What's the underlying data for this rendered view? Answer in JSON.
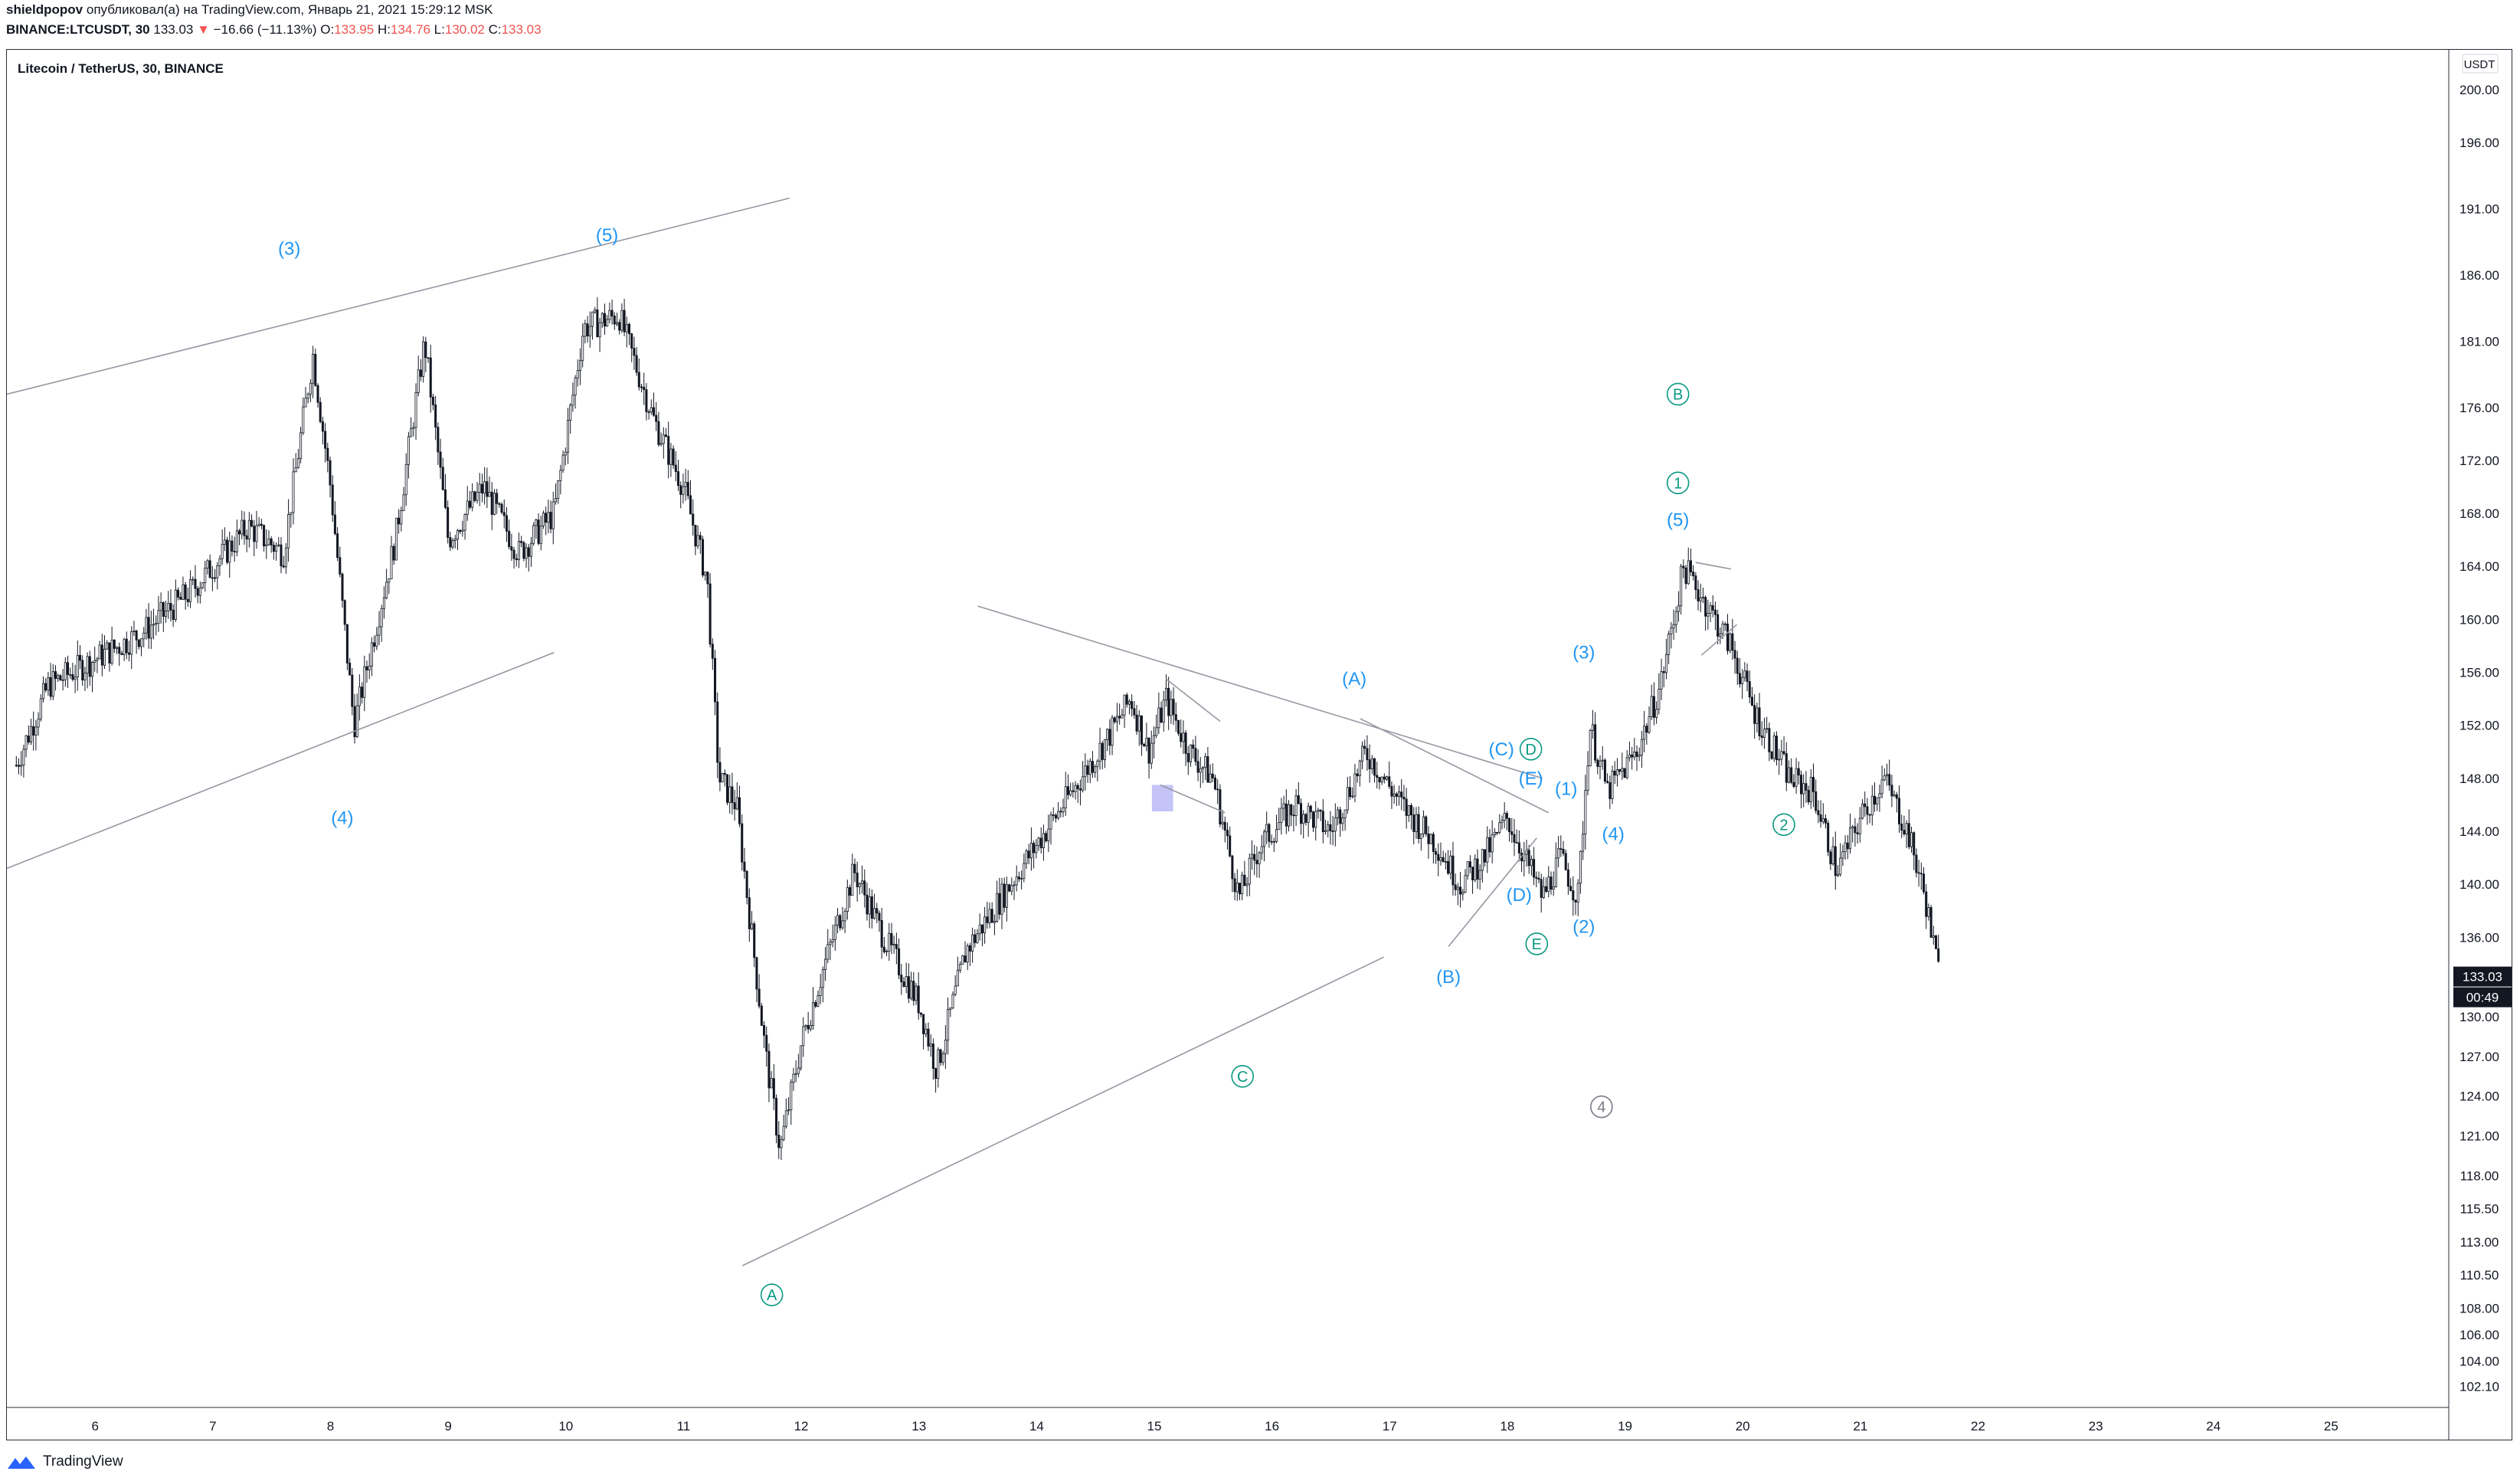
{
  "header": {
    "author": "shieldpopov",
    "published_text": "опубликовал(а) на TradingView.com, Январь 21, 2021 15:29:12 MSK",
    "symbol": "BINANCE:LTCUSDT, 30",
    "last": "133.03",
    "change": "−16.66 (−11.13%)",
    "open_label": "O:",
    "open_value": "133.95",
    "high_label": "H:",
    "high_value": "134.76",
    "low_label": "L:",
    "low_value": "130.02",
    "close_label": "C:",
    "close_value": "133.03"
  },
  "footer": {
    "brand": "TradingView",
    "logo_icon": "tradingview-logo-icon"
  },
  "colors": {
    "text": "#131722",
    "red": "#ef5350",
    "wave_blue": "#2196f3",
    "wave_green": "#089981",
    "wave_gray": "#787b86",
    "line": "#9598a1",
    "highlight": "#9c9cf5",
    "candle": "#131722"
  },
  "chart_data": {
    "type": "candlestick",
    "title": "Litecoin / TetherUS, 30, BINANCE",
    "currency": "USDT",
    "price_tag": "133.03",
    "countdown": "00:49",
    "y_ticks": [
      "200.00",
      "196.00",
      "191.00",
      "186.00",
      "181.00",
      "176.00",
      "172.00",
      "168.00",
      "164.00",
      "160.00",
      "156.00",
      "152.00",
      "148.00",
      "144.00",
      "140.00",
      "136.00",
      "130.00",
      "127.00",
      "124.00",
      "121.00",
      "118.00",
      "115.50",
      "113.00",
      "110.50",
      "108.00",
      "106.00",
      "104.00",
      "102.10"
    ],
    "x_ticks": [
      "6",
      "7",
      "8",
      "9",
      "10",
      "11",
      "12",
      "13",
      "14",
      "15",
      "16",
      "17",
      "18",
      "19",
      "20",
      "21",
      "22",
      "23",
      "24",
      "25"
    ],
    "ylim": [
      100.5,
      203
    ],
    "xlim": [
      5.25,
      26.0
    ],
    "price_path": [
      [
        5.33,
        149
      ],
      [
        5.6,
        155
      ],
      [
        6.0,
        157
      ],
      [
        6.4,
        159
      ],
      [
        6.8,
        162
      ],
      [
        7.0,
        164
      ],
      [
        7.3,
        167
      ],
      [
        7.6,
        165
      ],
      [
        7.85,
        180
      ],
      [
        8.0,
        170
      ],
      [
        8.2,
        152
      ],
      [
        8.35,
        158
      ],
      [
        8.55,
        166
      ],
      [
        8.8,
        181
      ],
      [
        9.0,
        166
      ],
      [
        9.3,
        170
      ],
      [
        9.6,
        165
      ],
      [
        9.9,
        168
      ],
      [
        10.15,
        182
      ],
      [
        10.45,
        183
      ],
      [
        10.75,
        175
      ],
      [
        11.0,
        170
      ],
      [
        11.2,
        163
      ],
      [
        11.3,
        148
      ],
      [
        11.45,
        146
      ],
      [
        11.7,
        127
      ],
      [
        11.82,
        120
      ],
      [
        12.0,
        128
      ],
      [
        12.2,
        134
      ],
      [
        12.45,
        141
      ],
      [
        12.7,
        136
      ],
      [
        13.0,
        131
      ],
      [
        13.15,
        126
      ],
      [
        13.4,
        135
      ],
      [
        13.7,
        139
      ],
      [
        14.0,
        143
      ],
      [
        14.3,
        147
      ],
      [
        14.6,
        151
      ],
      [
        14.8,
        154
      ],
      [
        14.95,
        150
      ],
      [
        15.1,
        154
      ],
      [
        15.3,
        150
      ],
      [
        15.5,
        148
      ],
      [
        15.72,
        139
      ],
      [
        15.9,
        143
      ],
      [
        16.2,
        146
      ],
      [
        16.5,
        144
      ],
      [
        16.8,
        150
      ],
      [
        17.1,
        146
      ],
      [
        17.4,
        143
      ],
      [
        17.6,
        140
      ],
      [
        17.8,
        142
      ],
      [
        18.0,
        145
      ],
      [
        18.2,
        141
      ],
      [
        18.3,
        139
      ],
      [
        18.45,
        142
      ],
      [
        18.6,
        139
      ],
      [
        18.7,
        152
      ],
      [
        18.85,
        147
      ],
      [
        19.1,
        150
      ],
      [
        19.3,
        155
      ],
      [
        19.5,
        164
      ],
      [
        19.7,
        161
      ],
      [
        19.9,
        158
      ],
      [
        20.1,
        153
      ],
      [
        20.4,
        148
      ],
      [
        20.6,
        147
      ],
      [
        20.8,
        141
      ],
      [
        21.0,
        145
      ],
      [
        21.2,
        148
      ],
      [
        21.4,
        144
      ],
      [
        21.55,
        139
      ],
      [
        21.65,
        134
      ],
      [
        21.68,
        133
      ]
    ],
    "trendlines": [
      {
        "x1": 5.25,
        "y1": 177,
        "x2": 11.9,
        "y2": 191.8
      },
      {
        "x1": 5.25,
        "y1": 141.2,
        "x2": 9.9,
        "y2": 157.5
      },
      {
        "x1": 13.5,
        "y1": 161,
        "x2": 18.3,
        "y2": 148
      },
      {
        "x1": 11.5,
        "y1": 111.2,
        "x2": 16.95,
        "y2": 134.5
      },
      {
        "x1": 15.1,
        "y1": 155.5,
        "x2": 15.56,
        "y2": 152.3
      },
      {
        "x1": 15.05,
        "y1": 147.5,
        "x2": 15.6,
        "y2": 145.4
      },
      {
        "x1": 16.75,
        "y1": 152.5,
        "x2": 18.35,
        "y2": 145.4
      },
      {
        "x1": 17.5,
        "y1": 135.3,
        "x2": 18.25,
        "y2": 143.5
      },
      {
        "x1": 19.6,
        "y1": 164.3,
        "x2": 19.9,
        "y2": 163.8
      },
      {
        "x1": 19.65,
        "y1": 157.3,
        "x2": 19.95,
        "y2": 159.6
      }
    ],
    "highlight_box": {
      "x1": 14.98,
      "x2": 15.16,
      "y1": 145.5,
      "y2": 147.5
    },
    "wave_labels": [
      {
        "text": "(3)",
        "x": 7.65,
        "y": 188,
        "color": "wave_blue",
        "circle": false
      },
      {
        "text": "(5)",
        "x": 10.35,
        "y": 189,
        "color": "wave_blue",
        "circle": false
      },
      {
        "text": "(4)",
        "x": 8.1,
        "y": 145,
        "color": "wave_blue",
        "circle": false
      },
      {
        "text": "A",
        "x": 11.75,
        "y": 109,
        "color": "wave_green",
        "circle": true
      },
      {
        "text": "C",
        "x": 15.75,
        "y": 125.5,
        "color": "wave_green",
        "circle": true
      },
      {
        "text": "(A)",
        "x": 16.7,
        "y": 155.5,
        "color": "wave_blue",
        "circle": false
      },
      {
        "text": "(B)",
        "x": 17.5,
        "y": 133,
        "color": "wave_blue",
        "circle": false
      },
      {
        "text": "(C)",
        "x": 17.95,
        "y": 150.2,
        "color": "wave_blue",
        "circle": false
      },
      {
        "text": "D",
        "x": 18.2,
        "y": 150.2,
        "color": "wave_green",
        "circle": true
      },
      {
        "text": "(E)",
        "x": 18.2,
        "y": 148,
        "color": "wave_blue",
        "circle": false
      },
      {
        "text": "(D)",
        "x": 18.1,
        "y": 139.2,
        "color": "wave_blue",
        "circle": false
      },
      {
        "text": "E",
        "x": 18.25,
        "y": 135.5,
        "color": "wave_green",
        "circle": true
      },
      {
        "text": "(1)",
        "x": 18.5,
        "y": 147.2,
        "color": "wave_blue",
        "circle": false
      },
      {
        "text": "(2)",
        "x": 18.65,
        "y": 136.8,
        "color": "wave_blue",
        "circle": false
      },
      {
        "text": "(3)",
        "x": 18.65,
        "y": 157.5,
        "color": "wave_blue",
        "circle": false
      },
      {
        "text": "(4)",
        "x": 18.9,
        "y": 143.8,
        "color": "wave_blue",
        "circle": false
      },
      {
        "text": "(5)",
        "x": 19.45,
        "y": 167.5,
        "color": "wave_blue",
        "circle": false
      },
      {
        "text": "1",
        "x": 19.45,
        "y": 170.3,
        "color": "wave_green",
        "circle": true
      },
      {
        "text": "B",
        "x": 19.45,
        "y": 177,
        "color": "wave_green",
        "circle": true
      },
      {
        "text": "2",
        "x": 20.35,
        "y": 144.5,
        "color": "wave_green",
        "circle": true
      },
      {
        "text": "4",
        "x": 18.8,
        "y": 123.2,
        "color": "wave_gray",
        "circle": true
      }
    ]
  }
}
